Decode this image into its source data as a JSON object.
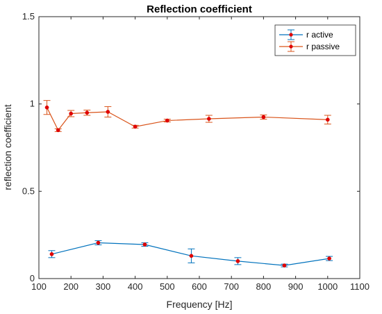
{
  "chart_data": {
    "type": "line",
    "title": "Reflection coefficient",
    "xlabel": "Frequency [Hz]",
    "ylabel": "reflection coefficient",
    "xlim": [
      100,
      1100
    ],
    "ylim": [
      0,
      1.5
    ],
    "xticks": [
      100,
      200,
      300,
      400,
      500,
      600,
      700,
      800,
      900,
      1000,
      1100
    ],
    "yticks": [
      0,
      0.5,
      1,
      1.5
    ],
    "ytick_labels": [
      "0",
      "0.5",
      "1",
      "1.5"
    ],
    "grid": false,
    "legend_position": "top-right",
    "marker_color": "#e00000",
    "series": [
      {
        "name": "r active",
        "color": "#0072bd",
        "x": [
          140,
          285,
          430,
          575,
          720,
          865,
          1005
        ],
        "y": [
          0.14,
          0.205,
          0.195,
          0.13,
          0.1,
          0.075,
          0.115
        ],
        "err": [
          0.02,
          0.012,
          0.01,
          0.04,
          0.02,
          0.008,
          0.012
        ]
      },
      {
        "name": "r passive",
        "color": "#d95319",
        "x": [
          125,
          160,
          200,
          250,
          315,
          400,
          500,
          630,
          800,
          1000
        ],
        "y": [
          0.98,
          0.85,
          0.945,
          0.95,
          0.955,
          0.87,
          0.905,
          0.915,
          0.925,
          0.91
        ],
        "err": [
          0.04,
          0.008,
          0.018,
          0.015,
          0.03,
          0.008,
          0.008,
          0.02,
          0.012,
          0.025
        ]
      }
    ]
  }
}
